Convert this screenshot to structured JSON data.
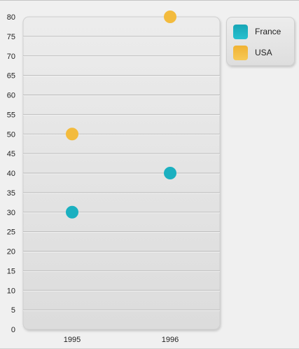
{
  "chart_data": {
    "type": "scatter",
    "categories": [
      "1995",
      "1996"
    ],
    "series": [
      {
        "name": "France",
        "color": "#1bb0c0",
        "values": [
          30,
          40
        ]
      },
      {
        "name": "USA",
        "color": "#f3bb3d",
        "values": [
          50,
          80
        ]
      }
    ],
    "ylim": [
      0,
      80
    ],
    "yticks": [
      "0",
      "5",
      "10",
      "15",
      "20",
      "25",
      "30",
      "35",
      "40",
      "45",
      "50",
      "55",
      "60",
      "65",
      "70",
      "75",
      "80"
    ],
    "grid": true,
    "legend": "top-right"
  }
}
